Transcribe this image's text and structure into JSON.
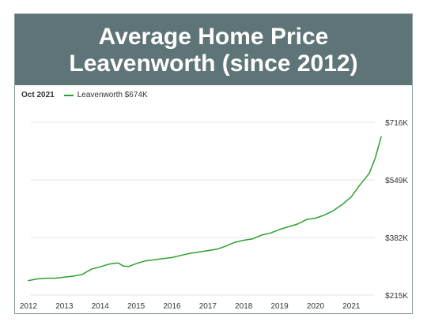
{
  "banner": {
    "line1": "Average Home Price",
    "line2": "Leavenworth (since 2012)"
  },
  "legend": {
    "date": "Oct 2021",
    "series_label": "Leavenworth $674K"
  },
  "colors": {
    "banner_bg": "#5e7476",
    "line": "#2ca02c",
    "grid": "#e3e3e3"
  },
  "chart_data": {
    "type": "line",
    "title": "Average Home Price Leavenworth (since 2012)",
    "xlabel": "",
    "ylabel": "",
    "x_ticks": [
      "2012",
      "2013",
      "2014",
      "2015",
      "2016",
      "2017",
      "2018",
      "2019",
      "2020",
      "2021"
    ],
    "y_ticks": [
      {
        "value": 215,
        "label": "$215K"
      },
      {
        "value": 382,
        "label": "$382K"
      },
      {
        "value": 549,
        "label": "$549K"
      },
      {
        "value": 716,
        "label": "$716K"
      }
    ],
    "xlim": [
      2012,
      2021.83
    ],
    "ylim": [
      215,
      716
    ],
    "grid": "horizontal",
    "legend": "top-left",
    "series": [
      {
        "name": "Leavenworth",
        "x": [
          2012.0,
          2012.25,
          2012.5,
          2012.75,
          2013.0,
          2013.25,
          2013.5,
          2013.75,
          2014.0,
          2014.25,
          2014.5,
          2014.65,
          2014.8,
          2015.0,
          2015.25,
          2015.5,
          2015.75,
          2016.0,
          2016.25,
          2016.5,
          2016.75,
          2017.0,
          2017.25,
          2017.5,
          2017.75,
          2018.0,
          2018.25,
          2018.5,
          2018.75,
          2019.0,
          2019.25,
          2019.5,
          2019.75,
          2020.0,
          2020.25,
          2020.5,
          2020.75,
          2021.0,
          2021.25,
          2021.5,
          2021.67,
          2021.83
        ],
        "values": [
          257,
          262,
          264,
          264,
          267,
          270,
          275,
          290,
          297,
          305,
          308,
          299,
          298,
          306,
          314,
          317,
          321,
          324,
          330,
          336,
          340,
          344,
          348,
          357,
          368,
          374,
          378,
          389,
          395,
          405,
          413,
          421,
          434,
          438,
          447,
          460,
          478,
          500,
          536,
          568,
          613,
          674
        ]
      }
    ]
  }
}
